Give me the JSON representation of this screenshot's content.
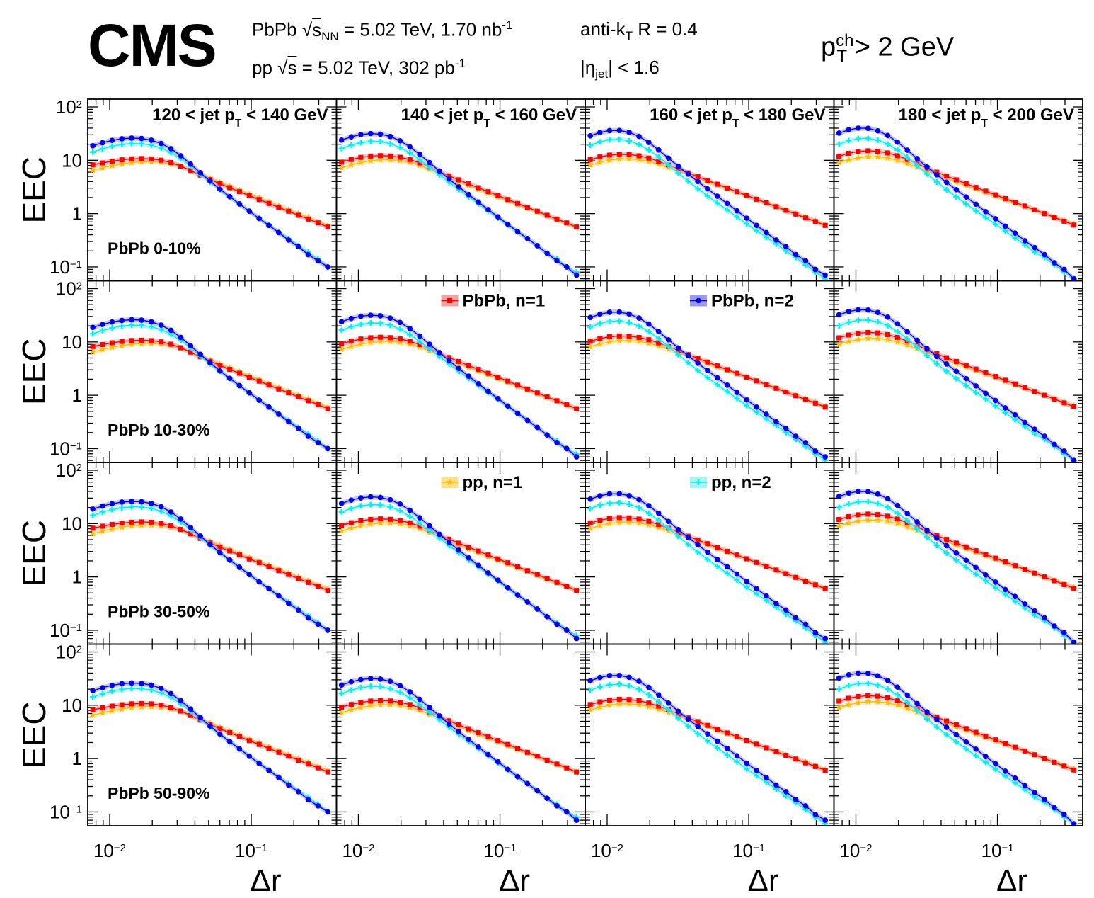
{
  "header": {
    "experiment": "CMS",
    "pbpb_info": {
      "system": "PbPb",
      "energy_symbol": "s",
      "energy_subscript": "NN",
      "energy_value": "= 5.02 TeV, 1.70 nb",
      "lumi_exp": "-1"
    },
    "pp_info": {
      "system": "pp",
      "energy_symbol": "s",
      "energy_value": "= 5.02 TeV, 302 pb",
      "lumi_exp": "-1"
    },
    "algo": {
      "prefix": "anti-k",
      "sub": "T",
      "suffix": " R = 0.4"
    },
    "eta": {
      "prefix": "|η",
      "sub": "jet",
      "suffix": "| < 1.6"
    },
    "track_cut": {
      "p": "p",
      "sup": "ch",
      "sub": "T",
      "suffix": " > 2 GeV"
    }
  },
  "chart_data": {
    "type": "line",
    "layout": "4x4 grid",
    "xlabel": "Δr",
    "ylabel": "EEC",
    "xscale": "log",
    "yscale": "log",
    "xlim": [
      0.007,
      0.4
    ],
    "ylim": [
      0.055,
      140
    ],
    "x_tick_labels": [
      {
        "value": 0.01,
        "base": "10",
        "exp": "−2"
      },
      {
        "value": 0.1,
        "base": "10",
        "exp": "−1"
      }
    ],
    "y_tick_labels": [
      {
        "value": 0.1,
        "base": "10",
        "exp": "−1"
      },
      {
        "value": 1,
        "base": "1",
        "exp": ""
      },
      {
        "value": 10,
        "base": "10",
        "exp": ""
      },
      {
        "value": 100,
        "base": "10",
        "exp": "2"
      }
    ],
    "jet_pt_bins": [
      {
        "pre": "120 < jet p",
        "sub": "T",
        "post": " < 140 GeV"
      },
      {
        "pre": "140 < jet p",
        "sub": "T",
        "post": " < 160 GeV"
      },
      {
        "pre": "160 < jet p",
        "sub": "T",
        "post": " < 180 GeV"
      },
      {
        "pre": "180 < jet p",
        "sub": "T",
        "post": " < 200 GeV"
      }
    ],
    "centrality_bins": [
      "PbPb 0-10%",
      "PbPb 10-30%",
      "PbPb 30-50%",
      "PbPb 50-90%"
    ],
    "legend": [
      {
        "label": "PbPb, n=1",
        "color": "#ff0000",
        "band": "#f5a0a0",
        "marker": "square",
        "row": 1,
        "col": 1
      },
      {
        "label": "PbPb, n=2",
        "color": "#0000ee",
        "band": "#9a9af0",
        "marker": "circle",
        "row": 1,
        "col": 2
      },
      {
        "label": "pp, n=1",
        "color": "#ffbb00",
        "band": "#fde08a",
        "marker": "star",
        "row": 2,
        "col": 1
      },
      {
        "label": "pp, n=2",
        "color": "#00f0f0",
        "band": "#a6f5f5",
        "marker": "cross",
        "row": 2,
        "col": 2
      }
    ],
    "x": [
      0.0076,
      0.0089,
      0.0104,
      0.0122,
      0.0143,
      0.0168,
      0.0197,
      0.0231,
      0.0271,
      0.0318,
      0.0373,
      0.0437,
      0.0512,
      0.0601,
      0.0705,
      0.0826,
      0.0969,
      0.1137,
      0.1333,
      0.1564,
      0.1834,
      0.2152,
      0.2524,
      0.296,
      0.3472
    ],
    "series": [
      {
        "name": "PbPb, n=1",
        "panels": [
          [
            8.19,
            8.93,
            9.63,
            10.22,
            10.62,
            10.77,
            10.6,
            10.03,
            9.06,
            7.78,
            6.43,
            5.26,
            4.34,
            3.64,
            3.06,
            2.58,
            2.17,
            1.84,
            1.55,
            1.31,
            1.11,
            0.93,
            0.79,
            0.67,
            0.56
          ],
          [
            9.22,
            10.35,
            11.32,
            11.98,
            12.23,
            12.02,
            11.38,
            10.32,
            8.93,
            7.46,
            6.15,
            5.11,
            4.3,
            3.62,
            3.06,
            2.58,
            2.18,
            1.84,
            1.55,
            1.31,
            1.11,
            0.93,
            0.79,
            0.67,
            0.56
          ],
          [
            10.3,
            11.57,
            12.52,
            12.95,
            12.8,
            12.13,
            11.0,
            9.61,
            8.17,
            6.87,
            5.81,
            4.94,
            4.2,
            3.56,
            3.03,
            2.58,
            2.19,
            1.86,
            1.59,
            1.35,
            1.15,
            0.98,
            0.83,
            0.71,
            0.6
          ],
          [
            11.92,
            13.49,
            14.61,
            15.07,
            14.75,
            13.73,
            12.17,
            10.36,
            8.62,
            7.16,
            6.0,
            5.06,
            4.3,
            3.65,
            3.1,
            2.64,
            2.25,
            1.91,
            1.63,
            1.39,
            1.18,
            1.0,
            0.85,
            0.72,
            0.61
          ]
        ]
      },
      {
        "name": "PbPb, n=2",
        "panels": [
          [
            18.74,
            21.33,
            23.64,
            25.33,
            26.08,
            25.64,
            23.84,
            20.68,
            16.51,
            12.15,
            8.48,
            5.85,
            4.08,
            2.88,
            2.08,
            1.52,
            1.11,
            0.81,
            0.6,
            0.44,
            0.32,
            0.24,
            0.17,
            0.13,
            0.1
          ],
          [
            23.9,
            27.54,
            30.34,
            31.67,
            30.92,
            27.94,
            23.2,
            17.82,
            12.88,
            9.05,
            6.33,
            4.46,
            3.18,
            2.28,
            1.65,
            1.19,
            0.87,
            0.63,
            0.46,
            0.34,
            0.25,
            0.18,
            0.13,
            0.1,
            0.07
          ],
          [
            28.72,
            33.16,
            36.01,
            36.2,
            33.4,
            28.07,
            21.64,
            15.59,
            10.98,
            7.73,
            5.52,
            4.0,
            2.91,
            2.12,
            1.55,
            1.13,
            0.82,
            0.6,
            0.44,
            0.32,
            0.24,
            0.17,
            0.13,
            0.09,
            0.07
          ],
          [
            32.31,
            37.26,
            40.12,
            39.67,
            35.65,
            29.17,
            21.92,
            15.48,
            10.74,
            7.5,
            5.34,
            3.86,
            2.81,
            2.05,
            1.5,
            1.09,
            0.8,
            0.58,
            0.43,
            0.31,
            0.23,
            0.17,
            0.12,
            0.09,
            0.06
          ]
        ]
      },
      {
        "name": "pp, n=1",
        "panels": [
          [
            6.5,
            7.22,
            7.92,
            8.55,
            9.05,
            9.35,
            9.4,
            9.14,
            8.55,
            7.66,
            6.61,
            5.55,
            4.62,
            3.86,
            3.25,
            2.75,
            2.32,
            1.96,
            1.66,
            1.4,
            1.18,
            1.0,
            0.85,
            0.71,
            0.6
          ],
          [
            7.24,
            8.2,
            9.09,
            9.8,
            10.21,
            10.26,
            9.89,
            9.11,
            8.01,
            6.78,
            5.64,
            4.7,
            3.95,
            3.35,
            2.84,
            2.41,
            2.05,
            1.74,
            1.48,
            1.26,
            1.07,
            0.91,
            0.77,
            0.65,
            0.55
          ],
          [
            8.1,
            9.16,
            10.03,
            10.56,
            10.64,
            10.26,
            9.47,
            8.43,
            7.3,
            6.27,
            5.38,
            4.63,
            3.98,
            3.42,
            2.94,
            2.52,
            2.16,
            1.85,
            1.58,
            1.36,
            1.16,
            0.99,
            0.85,
            0.73,
            0.62
          ],
          [
            9.01,
            10.2,
            11.14,
            11.65,
            11.61,
            11.02,
            9.97,
            8.68,
            7.39,
            6.25,
            5.32,
            4.56,
            3.91,
            3.37,
            2.89,
            2.49,
            2.14,
            1.84,
            1.58,
            1.36,
            1.17,
            1.0,
            0.86,
            0.74,
            0.64
          ]
        ]
      },
      {
        "name": "pp, n=2",
        "panels": [
          [
            14.24,
            16.36,
            18.3,
            19.82,
            20.62,
            20.48,
            19.28,
            17.03,
            13.96,
            10.65,
            7.71,
            5.48,
            3.9,
            2.82,
            2.05,
            1.51,
            1.11,
            0.82,
            0.61,
            0.45,
            0.34,
            0.25,
            0.19,
            0.14,
            0.1
          ],
          [
            16.58,
            19.25,
            21.44,
            22.63,
            22.37,
            20.51,
            17.41,
            13.74,
            10.24,
            7.42,
            5.34,
            3.87,
            2.82,
            2.07,
            1.52,
            1.12,
            0.83,
            0.61,
            0.45,
            0.34,
            0.25,
            0.18,
            0.14,
            0.1,
            0.08
          ],
          [
            19.06,
            22.16,
            24.3,
            24.73,
            23.09,
            19.78,
            15.63,
            11.58,
            8.23,
            5.76,
            4.07,
            2.93,
            2.14,
            1.58,
            1.17,
            0.87,
            0.64,
            0.48,
            0.36,
            0.27,
            0.2,
            0.15,
            0.11,
            0.08,
            0.06
          ],
          [
            20.08,
            23.38,
            25.52,
            25.75,
            23.81,
            20.13,
            15.66,
            11.4,
            7.99,
            5.55,
            3.91,
            2.81,
            2.06,
            1.52,
            1.13,
            0.85,
            0.63,
            0.47,
            0.35,
            0.26,
            0.19,
            0.15,
            0.11,
            0.08,
            0.06
          ]
        ]
      }
    ]
  }
}
